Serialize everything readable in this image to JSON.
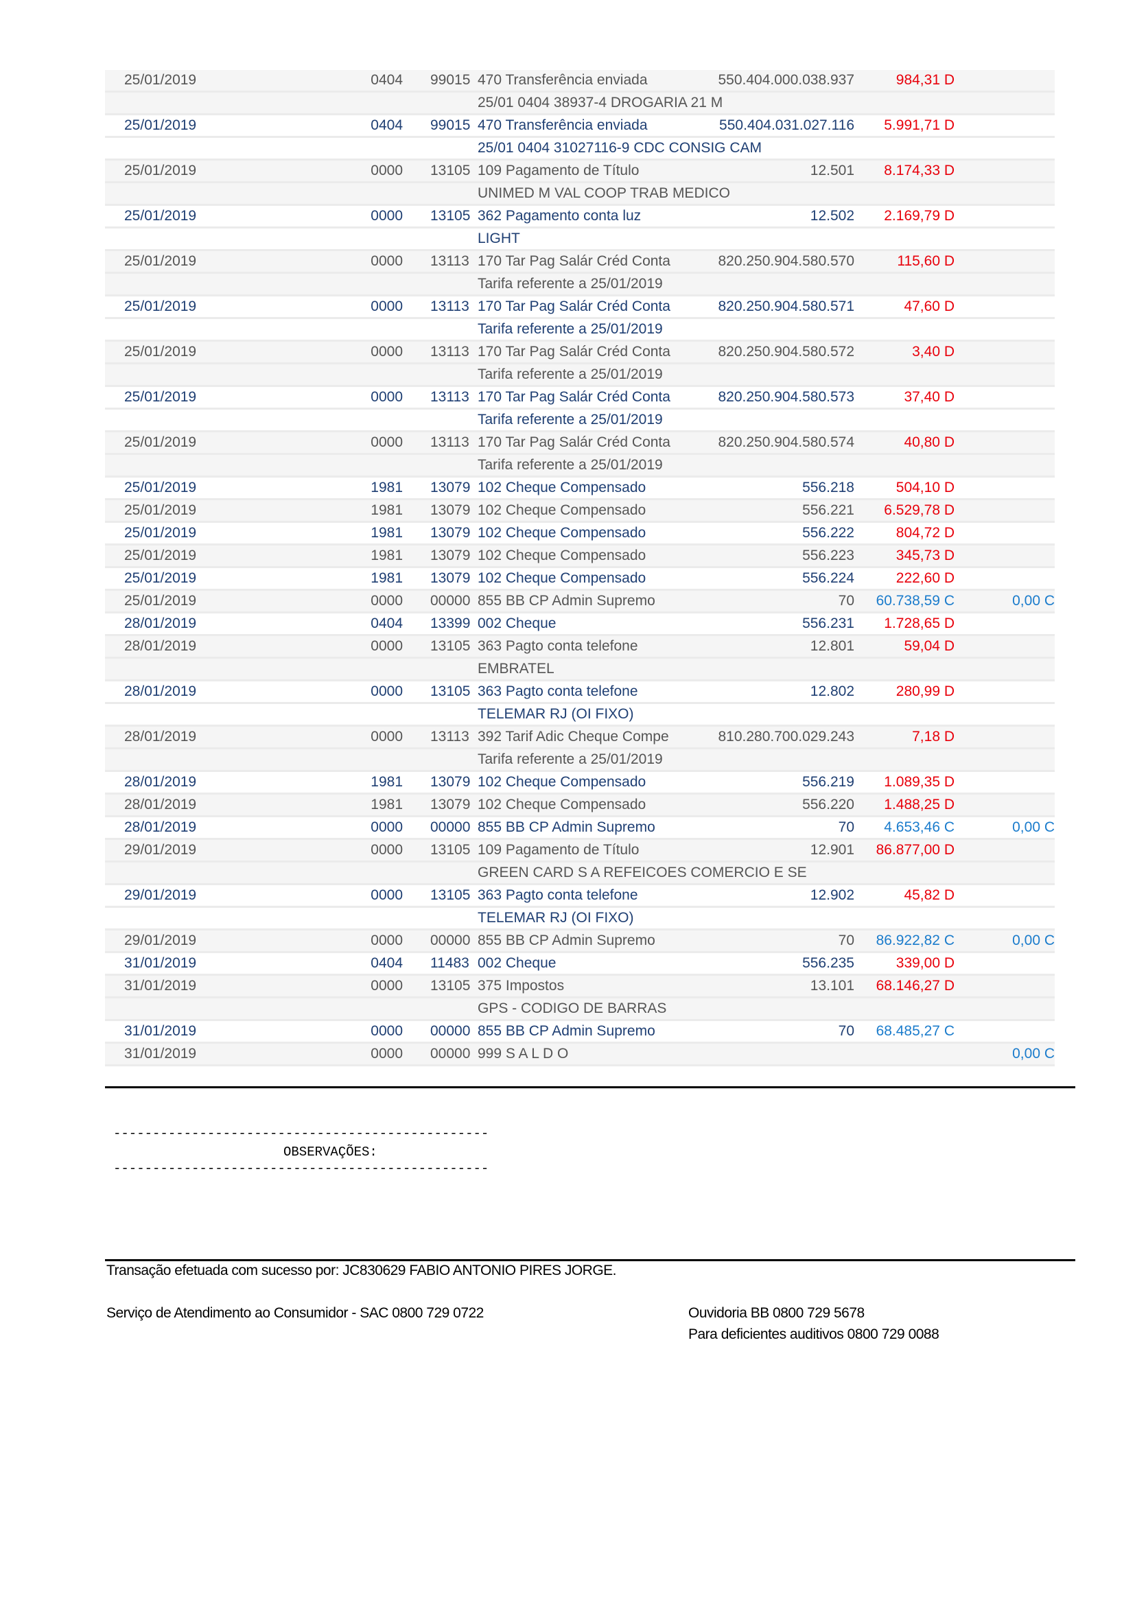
{
  "rows": [
    {
      "group": "g",
      "date": "25/01/2019",
      "agency": "0404",
      "lote": "99015",
      "history": "470 Transferência enviada",
      "doc": "550.404.000.038.937",
      "value": "984,31 D",
      "value_type": "D",
      "balance": "",
      "detail": "25/01 0404 38937-4 DROGARIA 21 M"
    },
    {
      "group": "w",
      "date": "25/01/2019",
      "agency": "0404",
      "lote": "99015",
      "history": "470 Transferência enviada",
      "doc": "550.404.031.027.116",
      "value": "5.991,71 D",
      "value_type": "D",
      "balance": "",
      "detail": "25/01 0404 31027116-9 CDC CONSIG CAM"
    },
    {
      "group": "g",
      "date": "25/01/2019",
      "agency": "0000",
      "lote": "13105",
      "history": "109 Pagamento de Título",
      "doc": "12.501",
      "value": "8.174,33 D",
      "value_type": "D",
      "balance": "",
      "detail": "UNIMED M VAL COOP TRAB MEDICO"
    },
    {
      "group": "w",
      "date": "25/01/2019",
      "agency": "0000",
      "lote": "13105",
      "history": "362 Pagamento conta luz",
      "doc": "12.502",
      "value": "2.169,79 D",
      "value_type": "D",
      "balance": "",
      "detail": "LIGHT"
    },
    {
      "group": "g",
      "date": "25/01/2019",
      "agency": "0000",
      "lote": "13113",
      "history": "170 Tar Pag Salár Créd Conta",
      "doc": "820.250.904.580.570",
      "value": "115,60 D",
      "value_type": "D",
      "balance": "",
      "detail": "Tarifa referente a 25/01/2019"
    },
    {
      "group": "w",
      "date": "25/01/2019",
      "agency": "0000",
      "lote": "13113",
      "history": "170 Tar Pag Salár Créd Conta",
      "doc": "820.250.904.580.571",
      "value": "47,60 D",
      "value_type": "D",
      "balance": "",
      "detail": "Tarifa referente a 25/01/2019"
    },
    {
      "group": "g",
      "date": "25/01/2019",
      "agency": "0000",
      "lote": "13113",
      "history": "170 Tar Pag Salár Créd Conta",
      "doc": "820.250.904.580.572",
      "value": "3,40 D",
      "value_type": "D",
      "balance": "",
      "detail": "Tarifa referente a 25/01/2019"
    },
    {
      "group": "w",
      "date": "25/01/2019",
      "agency": "0000",
      "lote": "13113",
      "history": "170 Tar Pag Salár Créd Conta",
      "doc": "820.250.904.580.573",
      "value": "37,40 D",
      "value_type": "D",
      "balance": "",
      "detail": "Tarifa referente a 25/01/2019"
    },
    {
      "group": "g",
      "date": "25/01/2019",
      "agency": "0000",
      "lote": "13113",
      "history": "170 Tar Pag Salár Créd Conta",
      "doc": "820.250.904.580.574",
      "value": "40,80 D",
      "value_type": "D",
      "balance": "",
      "detail": "Tarifa referente a 25/01/2019"
    },
    {
      "group": "w",
      "date": "25/01/2019",
      "agency": "1981",
      "lote": "13079",
      "history": "102 Cheque Compensado",
      "doc": "556.218",
      "value": "504,10 D",
      "value_type": "D",
      "balance": "",
      "detail": ""
    },
    {
      "group": "g",
      "date": "25/01/2019",
      "agency": "1981",
      "lote": "13079",
      "history": "102 Cheque Compensado",
      "doc": "556.221",
      "value": "6.529,78 D",
      "value_type": "D",
      "balance": "",
      "detail": ""
    },
    {
      "group": "w",
      "date": "25/01/2019",
      "agency": "1981",
      "lote": "13079",
      "history": "102 Cheque Compensado",
      "doc": "556.222",
      "value": "804,72 D",
      "value_type": "D",
      "balance": "",
      "detail": ""
    },
    {
      "group": "g",
      "date": "25/01/2019",
      "agency": "1981",
      "lote": "13079",
      "history": "102 Cheque Compensado",
      "doc": "556.223",
      "value": "345,73 D",
      "value_type": "D",
      "balance": "",
      "detail": ""
    },
    {
      "group": "w",
      "date": "25/01/2019",
      "agency": "1981",
      "lote": "13079",
      "history": "102 Cheque Compensado",
      "doc": "556.224",
      "value": "222,60 D",
      "value_type": "D",
      "balance": "",
      "detail": ""
    },
    {
      "group": "g",
      "date": "25/01/2019",
      "agency": "0000",
      "lote": "00000",
      "history": "855 BB CP Admin Supremo",
      "doc": "70",
      "value": "60.738,59 C",
      "value_type": "C",
      "balance": "0,00 C",
      "detail": ""
    },
    {
      "group": "w",
      "date": "28/01/2019",
      "agency": "0404",
      "lote": "13399",
      "history": "002 Cheque",
      "doc": "556.231",
      "value": "1.728,65 D",
      "value_type": "D",
      "balance": "",
      "detail": ""
    },
    {
      "group": "g",
      "date": "28/01/2019",
      "agency": "0000",
      "lote": "13105",
      "history": "363 Pagto conta telefone",
      "doc": "12.801",
      "value": "59,04 D",
      "value_type": "D",
      "balance": "",
      "detail": "EMBRATEL"
    },
    {
      "group": "w",
      "date": "28/01/2019",
      "agency": "0000",
      "lote": "13105",
      "history": "363 Pagto conta telefone",
      "doc": "12.802",
      "value": "280,99 D",
      "value_type": "D",
      "balance": "",
      "detail": "TELEMAR RJ (OI FIXO)"
    },
    {
      "group": "g",
      "date": "28/01/2019",
      "agency": "0000",
      "lote": "13113",
      "history": "392 Tarif Adic Cheque Compe",
      "doc": "810.280.700.029.243",
      "value": "7,18 D",
      "value_type": "D",
      "balance": "",
      "detail": "Tarifa referente a 25/01/2019"
    },
    {
      "group": "w",
      "date": "28/01/2019",
      "agency": "1981",
      "lote": "13079",
      "history": "102 Cheque Compensado",
      "doc": "556.219",
      "value": "1.089,35 D",
      "value_type": "D",
      "balance": "",
      "detail": ""
    },
    {
      "group": "g",
      "date": "28/01/2019",
      "agency": "1981",
      "lote": "13079",
      "history": "102 Cheque Compensado",
      "doc": "556.220",
      "value": "1.488,25 D",
      "value_type": "D",
      "balance": "",
      "detail": ""
    },
    {
      "group": "w",
      "date": "28/01/2019",
      "agency": "0000",
      "lote": "00000",
      "history": "855 BB CP Admin Supremo",
      "doc": "70",
      "value": "4.653,46 C",
      "value_type": "C",
      "balance": "0,00 C",
      "detail": ""
    },
    {
      "group": "g",
      "date": "29/01/2019",
      "agency": "0000",
      "lote": "13105",
      "history": "109 Pagamento de Título",
      "doc": "12.901",
      "value": "86.877,00 D",
      "value_type": "D",
      "balance": "",
      "detail": "GREEN CARD S A REFEICOES COMERCIO E SE"
    },
    {
      "group": "w",
      "date": "29/01/2019",
      "agency": "0000",
      "lote": "13105",
      "history": "363 Pagto conta telefone",
      "doc": "12.902",
      "value": "45,82 D",
      "value_type": "D",
      "balance": "",
      "detail": "TELEMAR RJ (OI FIXO)"
    },
    {
      "group": "g",
      "date": "29/01/2019",
      "agency": "0000",
      "lote": "00000",
      "history": "855 BB CP Admin Supremo",
      "doc": "70",
      "value": "86.922,82 C",
      "value_type": "C",
      "balance": "0,00 C",
      "detail": ""
    },
    {
      "group": "w",
      "date": "31/01/2019",
      "agency": "0404",
      "lote": "11483",
      "history": "002 Cheque",
      "doc": "556.235",
      "value": "339,00 D",
      "value_type": "D",
      "balance": "",
      "detail": ""
    },
    {
      "group": "g",
      "date": "31/01/2019",
      "agency": "0000",
      "lote": "13105",
      "history": "375 Impostos",
      "doc": "13.101",
      "value": "68.146,27 D",
      "value_type": "D",
      "balance": "",
      "detail": "GPS - CODIGO DE BARRAS"
    },
    {
      "group": "w",
      "date": "31/01/2019",
      "agency": "0000",
      "lote": "00000",
      "history": "855 BB CP Admin Supremo",
      "doc": "70",
      "value": "68.485,27 C",
      "value_type": "C",
      "balance": "",
      "detail": ""
    },
    {
      "group": "g",
      "date": "31/01/2019",
      "agency": "0000",
      "lote": "00000",
      "history": "999 S A L D O",
      "doc": "",
      "value": "",
      "value_type": "",
      "balance": "0,00 C",
      "detail": ""
    }
  ],
  "observations": {
    "dashes": "------------------------------------------------",
    "label": "OBSERVAÇÕES:"
  },
  "footer": {
    "transaction": "Transação efetuada com sucesso por: JC830629 FABIO ANTONIO PIRES JORGE.",
    "sac": "Serviço de Atendimento ao Consumidor - SAC 0800 729 0722",
    "ouvidoria": "Ouvidoria BB 0800 729 5678",
    "deaf": "Para deficientes auditivos 0800 729 0088"
  },
  "colors": {
    "debit": "#e8000b",
    "credit": "#1b7ccc",
    "text_gray": "#555555",
    "text_blue": "#1f3f73",
    "row_gray": "#f5f5f5"
  }
}
